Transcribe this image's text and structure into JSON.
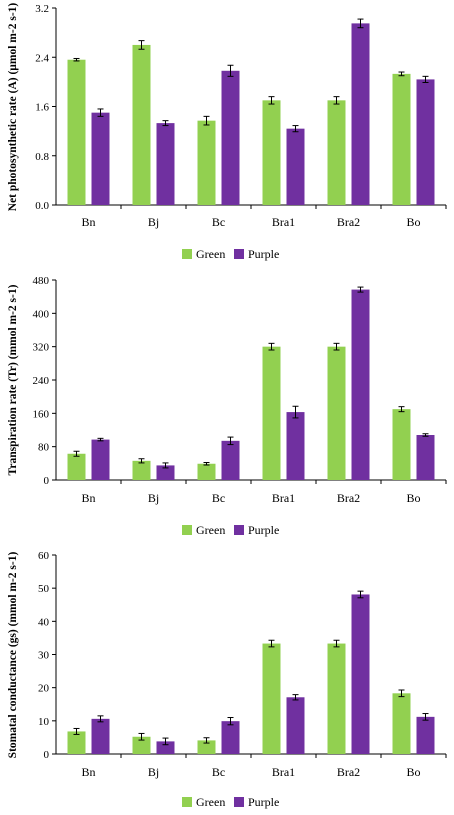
{
  "chart_data": [
    {
      "type": "bar",
      "title": "",
      "xlabel": "",
      "ylabel": "Net photosynthetic rate (A) (µmol m-2 s-1)",
      "ylim": [
        0,
        3.2
      ],
      "yticks": [
        "0.0",
        "0.8",
        "1.6",
        "2.4",
        "3.2"
      ],
      "categories": [
        "Bn",
        "Bj",
        "Bc",
        "Bra1",
        "Bra2",
        "Bo"
      ],
      "series": [
        {
          "name": "Green",
          "color": "#92d050",
          "values": [
            2.36,
            2.6,
            1.37,
            1.7,
            1.7,
            2.13
          ],
          "errors": [
            0.02,
            0.07,
            0.07,
            0.06,
            0.06,
            0.03
          ]
        },
        {
          "name": "Purple",
          "color": "#7030a0",
          "values": [
            1.5,
            1.33,
            2.18,
            1.24,
            2.95,
            2.04
          ],
          "errors": [
            0.06,
            0.04,
            0.09,
            0.05,
            0.07,
            0.05
          ]
        }
      ],
      "legend_position": "bottom",
      "grid": false
    },
    {
      "type": "bar",
      "title": "",
      "xlabel": "",
      "ylabel": "Transpiration rate (Tr) (mmol m-2 s-1)",
      "ylim": [
        0,
        480
      ],
      "yticks": [
        "0",
        "80",
        "160",
        "240",
        "320",
        "400",
        "480"
      ],
      "categories": [
        "Bn",
        "Bj",
        "Bc",
        "Bra1",
        "Bra2",
        "Bo"
      ],
      "series": [
        {
          "name": "Green",
          "color": "#92d050",
          "values": [
            63,
            46,
            39,
            320,
            320,
            170
          ],
          "errors": [
            6,
            5,
            3,
            8,
            8,
            6
          ]
        },
        {
          "name": "Purple",
          "color": "#7030a0",
          "values": [
            97,
            35,
            94,
            163,
            457,
            108
          ],
          "errors": [
            3,
            6,
            9,
            14,
            6,
            3
          ]
        }
      ],
      "legend_position": "bottom",
      "grid": false
    },
    {
      "type": "bar",
      "title": "",
      "xlabel": "",
      "ylabel": "Stomatal conductance (gs) (mmol m-2 s-1)",
      "ylim": [
        0,
        60
      ],
      "yticks": [
        "0",
        "10",
        "20",
        "30",
        "40",
        "50",
        "60"
      ],
      "categories": [
        "Bn",
        "Bj",
        "Bc",
        "Bra1",
        "Bra2",
        "Bo"
      ],
      "series": [
        {
          "name": "Green",
          "color": "#92d050",
          "values": [
            6.8,
            5.2,
            4.1,
            33.3,
            33.3,
            18.3
          ],
          "errors": [
            0.9,
            1.0,
            0.8,
            1.0,
            1.0,
            1.0
          ]
        },
        {
          "name": "Purple",
          "color": "#7030a0",
          "values": [
            10.6,
            3.8,
            9.9,
            17.1,
            48.1,
            11.2
          ],
          "errors": [
            0.9,
            1.0,
            1.1,
            0.8,
            1.0,
            1.0
          ]
        }
      ],
      "legend_position": "bottom",
      "grid": false
    }
  ]
}
